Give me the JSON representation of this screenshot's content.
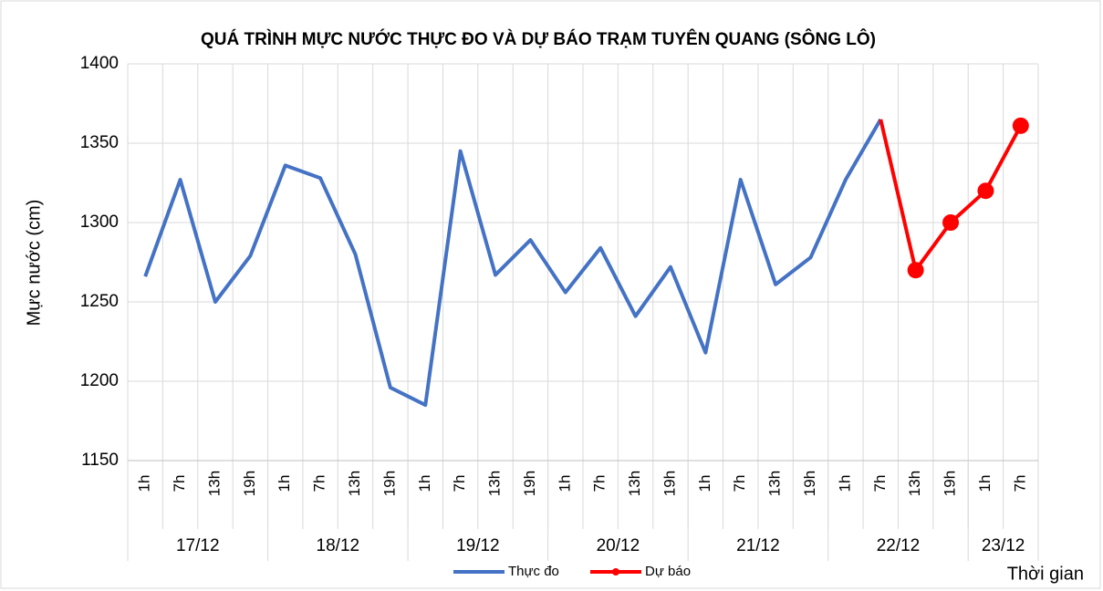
{
  "chart_data": {
    "type": "line",
    "title": "QUÁ TRÌNH MỰC NƯỚC THỰC ĐO VÀ DỰ BÁO TRẠM TUYÊN QUANG (SÔNG LÔ)",
    "y_label": "Mực nước (cm)",
    "x_label": "Thời gian",
    "category_groups": [
      {
        "label": "17/12",
        "categories": [
          "1h",
          "7h",
          "13h",
          "19h"
        ]
      },
      {
        "label": "18/12",
        "categories": [
          "1h",
          "7h",
          "13h",
          "19h"
        ]
      },
      {
        "label": "19/12",
        "categories": [
          "1h",
          "7h",
          "13h",
          "19h"
        ]
      },
      {
        "label": "20/12",
        "categories": [
          "1h",
          "7h",
          "13h",
          "19h"
        ]
      },
      {
        "label": "21/12",
        "categories": [
          "1h",
          "7h",
          "13h",
          "19h"
        ]
      },
      {
        "label": "22/12",
        "categories": [
          "1h",
          "7h",
          "13h",
          "19h"
        ]
      },
      {
        "label": "23/12",
        "categories": [
          "1h",
          "7h"
        ]
      }
    ],
    "series": [
      {
        "name": "Thực đo",
        "color": "#4472c4",
        "marker": false,
        "values": [
          1266,
          1327,
          1250,
          1279,
          1336,
          1328,
          1280,
          1196,
          1185,
          1345,
          1267,
          1289,
          1256,
          1284,
          1241,
          1272,
          1218,
          1327,
          1261,
          1278,
          1327,
          1365,
          null,
          null,
          null,
          null
        ]
      },
      {
        "name": "Dự báo",
        "color": "#ff0000",
        "marker": true,
        "values": [
          null,
          null,
          null,
          null,
          null,
          null,
          null,
          null,
          null,
          null,
          null,
          null,
          null,
          null,
          null,
          null,
          null,
          null,
          null,
          null,
          null,
          1365,
          1270,
          1300,
          1320,
          1361
        ]
      }
    ],
    "ylim": [
      1150,
      1400
    ],
    "yticks": [
      1150,
      1200,
      1250,
      1300,
      1350,
      1400
    ],
    "grid": true,
    "legend": "bottom"
  }
}
